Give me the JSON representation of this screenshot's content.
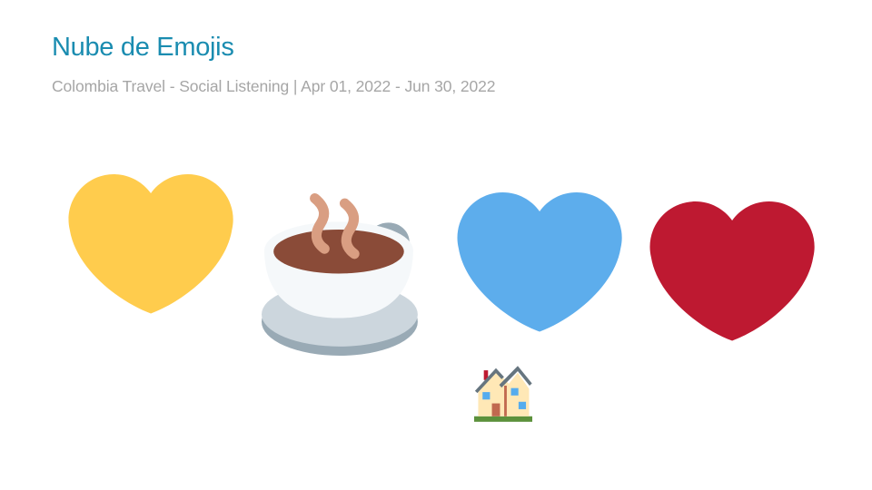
{
  "header": {
    "title": "Nube de Emojis",
    "subtitle": "Colombia Travel - Social Listening | Apr 01, 2022 - Jun 30, 2022"
  },
  "colors": {
    "title": "#1a8cb0",
    "subtitle": "#a6a6a6",
    "yellow_heart": "#ffcc4d",
    "blue_heart": "#5dadec",
    "red_heart": "#be1931",
    "coffee_liquid": "#8a4b38",
    "steam": "#d99e82",
    "cup": "#f5f8fa",
    "saucer": "#ccd6dd",
    "saucer_shadow": "#99aab5"
  },
  "emoji_cloud": [
    {
      "name": "yellow-heart",
      "glyph": "💛",
      "rank": 1
    },
    {
      "name": "hot-beverage",
      "glyph": "☕",
      "rank": 2
    },
    {
      "name": "blue-heart",
      "glyph": "💙",
      "rank": 3
    },
    {
      "name": "red-heart",
      "glyph": "❤️",
      "rank": 4
    },
    {
      "name": "house-with-garden",
      "glyph": "🏡",
      "rank": 5
    }
  ]
}
